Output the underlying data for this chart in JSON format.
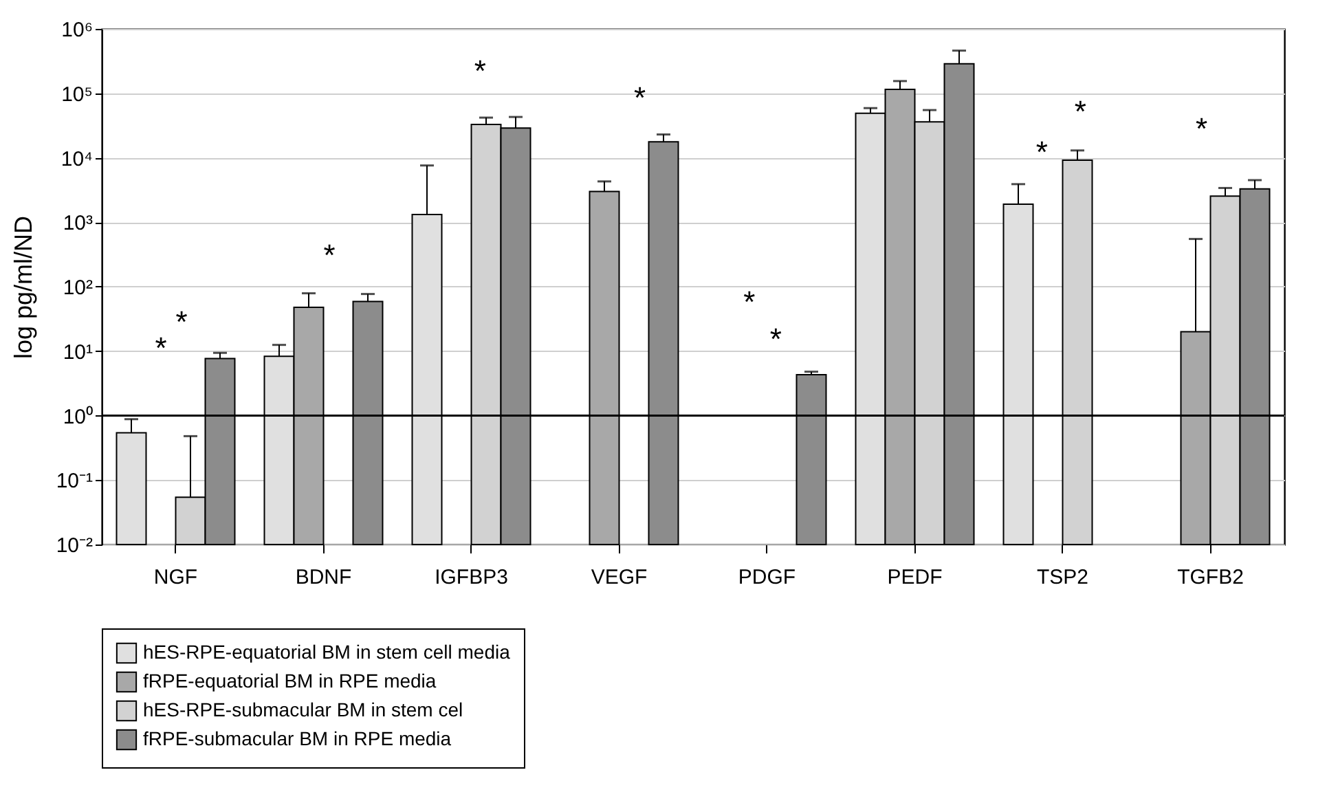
{
  "chart_data": {
    "type": "bar",
    "ylabel": "log pg/ml/ND",
    "categories": [
      "NGF",
      "BDNF",
      "IGFBP3",
      "VEGF",
      "PDGF",
      "PEDF",
      "TSP2",
      "TGFB2"
    ],
    "series": [
      {
        "name": "hES-RPE-equatorial BM in stem cell media",
        "color": "#e0e0e0",
        "values": [
          0.54,
          8.3,
          1320,
          null,
          null,
          49000,
          1900,
          null
        ],
        "errors": [
          [
            0.54,
            0.88
          ],
          [
            8.3,
            12.5
          ],
          [
            1320,
            7600
          ],
          null,
          null,
          [
            49000,
            59000
          ],
          [
            1900,
            3900
          ],
          null
        ]
      },
      {
        "name": "fRPE-equatorial BM in RPE media",
        "color": "#a8a8a8",
        "values": [
          null,
          48,
          null,
          3000,
          null,
          115000,
          null,
          20
        ],
        "errors": [
          null,
          [
            48,
            79
          ],
          null,
          [
            3000,
            4300
          ],
          null,
          [
            115000,
            155000
          ],
          null,
          [
            20,
            550
          ]
        ]
      },
      {
        "name": "hES-RPE-submacular BM in stem cel",
        "color": "#d2d2d2",
        "values": [
          0.054,
          null,
          33000,
          null,
          null,
          36000,
          9200,
          2550
        ],
        "errors": [
          [
            0.054,
            0.48
          ],
          null,
          [
            33000,
            42000
          ],
          null,
          null,
          [
            36000,
            55000
          ],
          [
            9200,
            13000
          ],
          [
            2550,
            3400
          ]
        ]
      },
      {
        "name": "fRPE-submacular BM in RPE media",
        "color": "#8c8c8c",
        "values": [
          7.7,
          59,
          29000,
          17700,
          4.3,
          288000,
          null,
          3300
        ],
        "errors": [
          [
            7.7,
            9.4
          ],
          [
            59,
            77
          ],
          [
            29000,
            43000
          ],
          [
            17700,
            23000
          ],
          [
            4.3,
            4.8
          ],
          [
            288000,
            460000
          ],
          null,
          [
            3300,
            4500
          ]
        ]
      }
    ],
    "log": "y",
    "ylim": [
      0.01,
      1000000
    ],
    "yticks": [
      {
        "value": 0.01,
        "label": "10⁻²"
      },
      {
        "value": 0.1,
        "label": "10⁻¹"
      },
      {
        "value": 1,
        "label": "10⁰"
      },
      {
        "value": 10,
        "label": "10¹"
      },
      {
        "value": 100,
        "label": "10²"
      },
      {
        "value": 1000,
        "label": "10³"
      },
      {
        "value": 10000,
        "label": "10⁴"
      },
      {
        "value": 100000,
        "label": "10⁵"
      },
      {
        "value": 1000000,
        "label": "10⁶"
      }
    ],
    "ref_lines": [
      {
        "axis": "y",
        "value": 1,
        "color": "#000000"
      }
    ],
    "annotations": [
      "*",
      "*",
      "*",
      "*",
      "*",
      "*",
      "*",
      "*",
      "*",
      "*"
    ],
    "grid": "y",
    "legend": "bottom left"
  }
}
